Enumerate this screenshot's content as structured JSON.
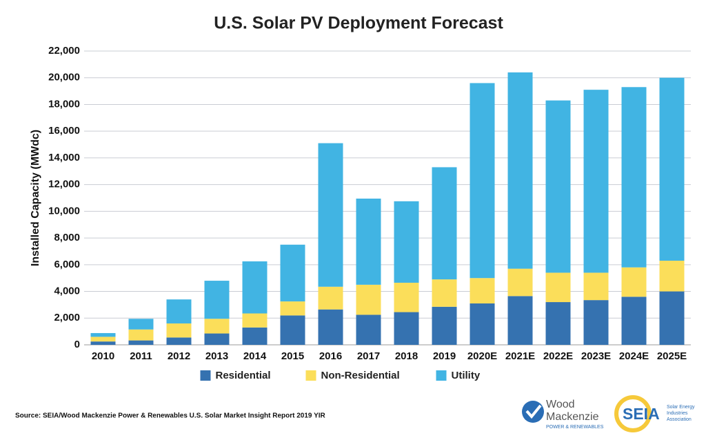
{
  "chart_data": {
    "type": "stacked-bar",
    "title": "U.S. Solar PV Deployment Forecast",
    "y_label": "Installed Capacity (MWdc)",
    "categories": [
      "2010",
      "2011",
      "2012",
      "2013",
      "2014",
      "2015",
      "2016",
      "2017",
      "2018",
      "2019",
      "2020E",
      "2021E",
      "2022E",
      "2023E",
      "2024E",
      "2025E"
    ],
    "series": [
      {
        "name": "Residential",
        "color": "#3572b0",
        "values": [
          250,
          330,
          550,
          850,
          1300,
          2200,
          2650,
          2250,
          2450,
          2850,
          3100,
          3650,
          3200,
          3350,
          3600,
          4000
        ]
      },
      {
        "name": "Non-Residential",
        "color": "#fbde5a",
        "values": [
          350,
          820,
          1050,
          1100,
          1050,
          1050,
          1700,
          2250,
          2200,
          2050,
          1900,
          2050,
          2200,
          2050,
          2200,
          2300
        ]
      },
      {
        "name": "Utility",
        "color": "#41b4e3",
        "values": [
          280,
          800,
          1800,
          2850,
          3900,
          4250,
          10750,
          6450,
          6100,
          8400,
          14600,
          14700,
          12900,
          13700,
          13500,
          13700
        ]
      }
    ],
    "ylim": [
      0,
      22000
    ],
    "yticks": [
      0,
      {
        "value": 2000,
        "label": "2,000"
      },
      {
        "value": 4000,
        "label": "4,000"
      },
      {
        "value": 6000,
        "label": "6,000"
      },
      {
        "value": 8000,
        "label": "8,000"
      },
      {
        "value": 10000,
        "label": "10,000"
      },
      {
        "value": 12000,
        "label": "12,000"
      },
      {
        "value": 14000,
        "label": "14,000"
      },
      {
        "value": 16000,
        "label": "16,000"
      },
      {
        "value": 18000,
        "label": "18,000"
      },
      {
        "value": 20000,
        "label": "20,000"
      },
      {
        "value": 22000,
        "label": "22,000"
      }
    ],
    "grid": true,
    "legend": "bottom"
  },
  "footer": {
    "source": "Source: SEIA/Wood Mackenzie Power & Renewables U.S. Solar Market Insight Report 2019 YIR",
    "wood_mackenzie": [
      "Wood",
      "Mackenzie",
      "POWER & RENEWABLES"
    ],
    "seia": [
      "SEIA",
      "Solar Energy",
      "Industries",
      "Association"
    ]
  }
}
